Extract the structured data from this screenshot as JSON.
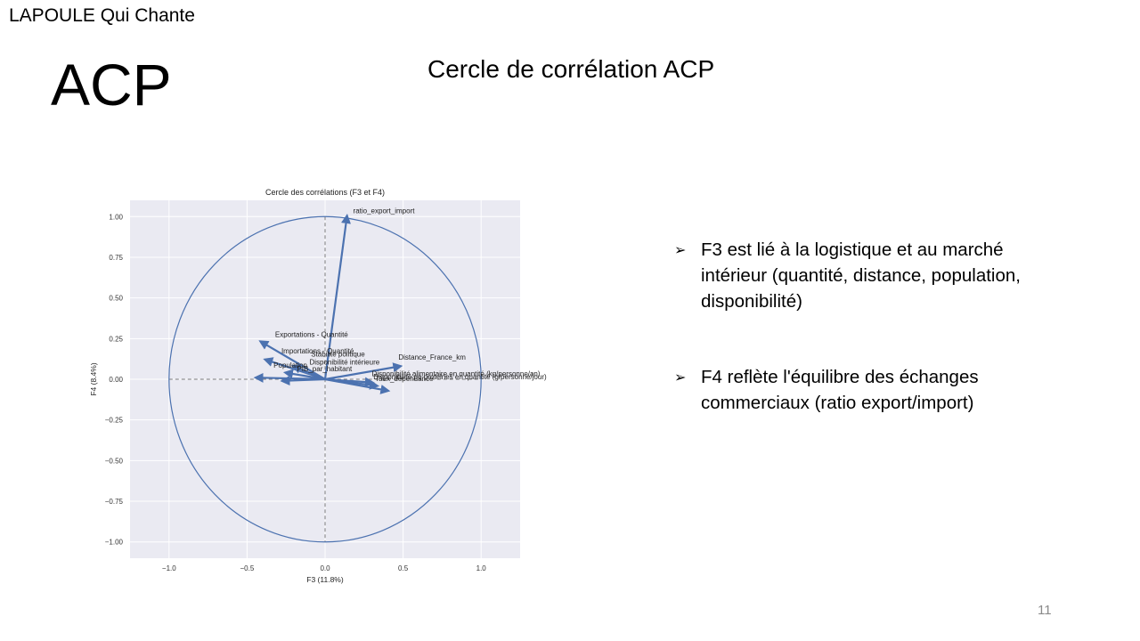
{
  "header": {
    "brand": "LAPOULE Qui Chante"
  },
  "slide": {
    "title": "ACP",
    "chart_heading": "Cercle de corrélation ACP",
    "page_number": "11"
  },
  "bullets": [
    {
      "marker_icon": "arrowhead-bullet-icon",
      "text": "F3 est lié à la logistique et au marché intérieur (quantité, distance, population, disponibilité)"
    },
    {
      "marker_icon": "arrowhead-bullet-icon",
      "text": " F4 reflète l'équilibre des échanges commerciaux (ratio export/import)"
    }
  ],
  "chart_data": {
    "type": "scatter",
    "subtype": "correlation-circle-vectors",
    "title": "Cercle des corrélations (F3 et F4)",
    "xlabel": "F3 (11.8%)",
    "ylabel": "F4 (8.4%)",
    "xlim": [
      -1.25,
      1.25
    ],
    "ylim": [
      -1.1,
      1.1
    ],
    "xticks": [
      -1.0,
      -0.5,
      0.0,
      0.5,
      1.0
    ],
    "xtick_labels": [
      "−1.0",
      "−0.5",
      "0.0",
      "0.5",
      "1.0"
    ],
    "yticks": [
      1.0,
      0.75,
      0.5,
      0.25,
      0.0,
      -0.25,
      -0.5,
      -0.75,
      -1.0
    ],
    "ytick_labels": [
      "1.00",
      "0.75",
      "0.50",
      "0.25",
      "0.00",
      "−0.25",
      "−0.50",
      "−0.75",
      "−1.00"
    ],
    "grid": true,
    "unit_circle": true,
    "colors": {
      "arrow": "#4c72b0",
      "circle": "#4c72b0",
      "panel": "#eaeaf2",
      "grid": "#ffffff",
      "axis_dash": "#808080"
    },
    "vectors": [
      {
        "label": "ratio_export_import",
        "x": 0.14,
        "y": 1.0
      },
      {
        "label": "Exportations - Quantité",
        "x": -0.41,
        "y": 0.23
      },
      {
        "label": "Importations - Quantité",
        "x": -0.38,
        "y": 0.12
      },
      {
        "label": "Stabilité politique",
        "x": -0.2,
        "y": 0.08
      },
      {
        "label": "Disponibilité intérieure",
        "x": -0.25,
        "y": 0.04
      },
      {
        "label": "Distance_France_km",
        "x": 0.48,
        "y": 0.08
      },
      {
        "label": "Population",
        "x": -0.44,
        "y": 0.01
      },
      {
        "label": "PIB_par_habitant",
        "x": -0.27,
        "y": -0.01
      },
      {
        "label": "Disponibilité de protéines en quantité (g/personne/jour)",
        "x": 0.4,
        "y": -0.07
      },
      {
        "label": "Disponibilité alimentaire en quantité (kg/personne/an)",
        "x": 0.33,
        "y": -0.04
      },
      {
        "label": "Taux_dépendance",
        "x": 0.3,
        "y": -0.02
      }
    ],
    "label_positions": [
      {
        "label": "ratio_export_import",
        "x": 0.18,
        "y": 1.02
      },
      {
        "label": "Exportations - Quantité",
        "x": -0.32,
        "y": 0.26
      },
      {
        "label": "Importations - Quantité",
        "x": -0.28,
        "y": 0.16
      },
      {
        "label": "Stabilité politique",
        "x": -0.09,
        "y": 0.14
      },
      {
        "label": "Disponibilité intérieure",
        "x": -0.1,
        "y": 0.09
      },
      {
        "label": "Distance_France_km",
        "x": 0.47,
        "y": 0.12
      },
      {
        "label": "Population",
        "x": -0.33,
        "y": 0.07
      },
      {
        "label": "PIB_par_habitant",
        "x": -0.18,
        "y": 0.05
      },
      {
        "label": "Disponibilité de protéines en quantité (g/personne/jour)",
        "x": 0.31,
        "y": 0.0
      },
      {
        "label": "Disponibilité alimentaire en quantité (kg/personne/an)",
        "x": 0.3,
        "y": 0.02
      },
      {
        "label": "Taux_dépendance",
        "x": 0.32,
        "y": -0.01
      }
    ]
  }
}
